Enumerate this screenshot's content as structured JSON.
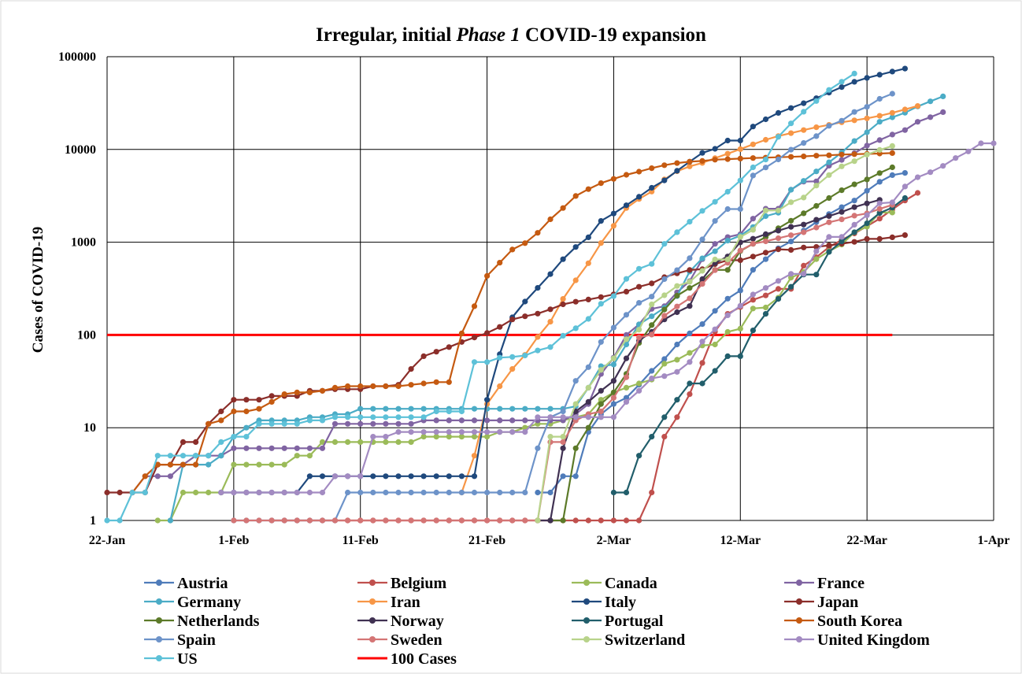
{
  "chart_data": {
    "type": "line",
    "title": {
      "before": "Irregular, initial ",
      "italic": "Phase 1",
      "after": " COVID-19 expansion"
    },
    "xlabel": "",
    "ylabel": "Cases of COVID-19",
    "y_scale": "log",
    "ylim": [
      1,
      100000
    ],
    "y_ticks": [
      {
        "value": 1,
        "label": "1"
      },
      {
        "value": 10,
        "label": "10"
      },
      {
        "value": 100,
        "label": "100"
      },
      {
        "value": 1000,
        "label": "1000"
      },
      {
        "value": 10000,
        "label": "10000"
      },
      {
        "value": 100000,
        "label": "100000"
      }
    ],
    "x_start_label": "22-Jan",
    "x_ticks": [
      {
        "date": "22-Jan",
        "label": "22-Jan"
      },
      {
        "date": "1-Feb",
        "label": "1-Feb"
      },
      {
        "date": "11-Feb",
        "label": "11-Feb"
      },
      {
        "date": "21-Feb",
        "label": "21-Feb"
      },
      {
        "date": "2-Mar",
        "label": "2-Mar"
      },
      {
        "date": "12-Mar",
        "label": "12-Mar"
      },
      {
        "date": "22-Mar",
        "label": "22-Mar"
      },
      {
        "date": "1-Apr",
        "label": "1-Apr"
      }
    ],
    "xlim": [
      "22-Jan",
      "1-Apr"
    ],
    "grid": true,
    "legend_position": "bottom",
    "series": [
      {
        "name": "Austria",
        "color": "#4f7cba",
        "start": "25-Feb",
        "values": [
          2,
          2,
          3,
          3,
          9,
          14,
          18,
          21,
          29,
          41,
          55,
          79,
          104,
          131,
          182,
          246,
          302,
          504,
          655,
          860,
          1018,
          1332,
          1646,
          2013,
          2388,
          2814,
          3582,
          4474,
          5283,
          5588
        ]
      },
      {
        "name": "Belgium",
        "color": "#c0504d",
        "start": "4-Feb",
        "values": [
          1,
          1,
          1,
          1,
          1,
          1,
          1,
          1,
          1,
          1,
          1,
          1,
          1,
          1,
          1,
          1,
          1,
          1,
          1,
          1,
          1,
          1,
          1,
          1,
          1,
          1,
          1,
          1,
          1,
          1,
          2,
          8,
          13,
          23,
          50,
          109,
          169,
          200,
          239,
          267,
          314,
          314,
          559,
          689,
          886,
          1058,
          1243,
          1486,
          1795,
          2257,
          2815,
          3401
        ]
      },
      {
        "name": "Canada",
        "color": "#9bbb59",
        "start": "26-Jan",
        "values": [
          1,
          1,
          2,
          2,
          2,
          2,
          4,
          4,
          4,
          4,
          4,
          5,
          5,
          7,
          7,
          7,
          7,
          7,
          7,
          7,
          7,
          8,
          8,
          8,
          8,
          8,
          8,
          9,
          9,
          10,
          11,
          11,
          12,
          13,
          14,
          20,
          24,
          27,
          30,
          33,
          49,
          54,
          64,
          77,
          79,
          108,
          117,
          193,
          198,
          252,
          415,
          478,
          657,
          800,
          943,
          1277,
          1469,
          2088,
          2088
        ]
      },
      {
        "name": "France",
        "color": "#8064a2",
        "start": "24-Jan",
        "values": [
          2,
          3,
          3,
          3,
          4,
          5,
          5,
          5,
          6,
          6,
          6,
          6,
          6,
          6,
          6,
          6,
          11,
          11,
          11,
          11,
          11,
          11,
          11,
          12,
          12,
          12,
          12,
          12,
          12,
          12,
          12,
          12,
          12,
          12,
          12,
          14,
          18,
          38,
          57,
          100,
          130,
          191,
          204,
          288,
          380,
          656,
          959,
          1136,
          1219,
          1794,
          2293,
          2293,
          3681,
          4496,
          4532,
          6683,
          7715,
          9124,
          10995,
          12612,
          14459,
          16176,
          19856,
          22304,
          25233
        ]
      },
      {
        "name": "Germany",
        "color": "#4bacc6",
        "start": "27-Jan",
        "values": [
          1,
          4,
          4,
          4,
          5,
          8,
          10,
          12,
          12,
          12,
          12,
          13,
          13,
          14,
          14,
          16,
          16,
          16,
          16,
          16,
          16,
          16,
          16,
          16,
          16,
          16,
          16,
          16,
          16,
          16,
          16,
          16,
          17,
          27,
          46,
          48,
          79,
          130,
          159,
          196,
          262,
          482,
          670,
          799,
          1040,
          1176,
          1457,
          1908,
          2078,
          3675,
          4585,
          5795,
          7272,
          9257,
          12327,
          15320,
          19848,
          22213,
          24873,
          29056,
          32986,
          37323
        ]
      },
      {
        "name": "Iran",
        "color": "#f79646",
        "start": "19-Feb",
        "values": [
          2,
          5,
          18,
          28,
          43,
          61,
          95,
          139,
          245,
          388,
          593,
          978,
          1501,
          2336,
          2922,
          3513,
          4747,
          5823,
          6566,
          7161,
          8042,
          9000,
          10075,
          11364,
          12729,
          13938,
          14991,
          16169,
          17361,
          18407,
          19644,
          20610,
          21638,
          23049,
          24811,
          27017,
          29406
        ]
      },
      {
        "name": "Italy",
        "color": "#1f497d",
        "start": "31-Jan",
        "values": [
          2,
          2,
          2,
          2,
          2,
          2,
          2,
          3,
          3,
          3,
          3,
          3,
          3,
          3,
          3,
          3,
          3,
          3,
          3,
          3,
          3,
          20,
          62,
          155,
          229,
          322,
          453,
          655,
          888,
          1128,
          1694,
          2036,
          2502,
          3089,
          3858,
          4636,
          5883,
          7375,
          9172,
          10149,
          12462,
          12462,
          17660,
          21157,
          24747,
          27980,
          31506,
          35713,
          41035,
          47021,
          53578,
          59138,
          63927,
          69176,
          74386
        ]
      },
      {
        "name": "Japan",
        "color": "#8b2e2a",
        "start": "22-Jan",
        "values": [
          2,
          2,
          2,
          2,
          4,
          4,
          7,
          7,
          11,
          15,
          20,
          20,
          20,
          22,
          22,
          22,
          25,
          25,
          26,
          26,
          26,
          28,
          28,
          29,
          43,
          59,
          66,
          74,
          84,
          94,
          105,
          122,
          147,
          159,
          170,
          189,
          214,
          228,
          241,
          256,
          274,
          293,
          331,
          360,
          420,
          461,
          502,
          511,
          581,
          639,
          639,
          701,
          773,
          839,
          825,
          878,
          889,
          924,
          963,
          1007,
          1086,
          1086,
          1128,
          1193
        ]
      },
      {
        "name": "Netherlands",
        "color": "#5c7a29",
        "start": "26-Feb",
        "values": [
          1,
          1,
          6,
          10,
          18,
          24,
          38,
          82,
          128,
          188,
          265,
          321,
          382,
          503,
          503,
          804,
          959,
          1135,
          1413,
          1705,
          2051,
          2460,
          2994,
          3631,
          4204,
          4749,
          5560,
          6412
        ]
      },
      {
        "name": "Norway",
        "color": "#403152",
        "start": "25-Feb",
        "values": [
          1,
          1,
          6,
          15,
          19,
          25,
          32,
          56,
          87,
          108,
          147,
          176,
          205,
          400,
          598,
          702,
          996,
          1090,
          1221,
          1333,
          1463,
          1550,
          1746,
          1914,
          2118,
          2385,
          2621,
          2863
        ]
      },
      {
        "name": "Portugal",
        "color": "#215e6b",
        "start": "2-Mar",
        "values": [
          2,
          2,
          5,
          8,
          13,
          20,
          30,
          30,
          41,
          59,
          59,
          112,
          169,
          245,
          331,
          448,
          448,
          785,
          1020,
          1280,
          1600,
          2060,
          2362,
          2995
        ]
      },
      {
        "name": "South Korea",
        "color": "#c55a11",
        "start": "24-Jan",
        "values": [
          2,
          3,
          4,
          4,
          4,
          4,
          11,
          12,
          15,
          15,
          16,
          19,
          23,
          24,
          24,
          25,
          27,
          28,
          28,
          28,
          28,
          28,
          29,
          30,
          31,
          31,
          104,
          204,
          433,
          602,
          833,
          977,
          1261,
          1766,
          2337,
          3150,
          3736,
          4335,
          4812,
          5328,
          5766,
          6284,
          6767,
          7134,
          7382,
          7513,
          7755,
          7869,
          7979,
          8086,
          8162,
          8236,
          8320,
          8413,
          8565,
          8652,
          8799,
          8897,
          8961,
          9037,
          9137
        ]
      },
      {
        "name": "Spain",
        "color": "#6d93c9",
        "start": "1-Feb",
        "values": [
          1,
          1,
          1,
          1,
          1,
          1,
          1,
          1,
          1,
          2,
          2,
          2,
          2,
          2,
          2,
          2,
          2,
          2,
          2,
          2,
          2,
          2,
          2,
          2,
          6,
          13,
          15,
          32,
          45,
          84,
          120,
          165,
          222,
          259,
          400,
          500,
          673,
          1073,
          1695,
          2277,
          2277,
          5232,
          6391,
          7798,
          9942,
          11748,
          13910,
          17963,
          20410,
          25374,
          28768,
          35136,
          39885
        ]
      },
      {
        "name": "Sweden",
        "color": "#d47575",
        "start": "1-Feb",
        "values": [
          1,
          1,
          1,
          1,
          1,
          1,
          1,
          1,
          1,
          1,
          1,
          1,
          1,
          1,
          1,
          1,
          1,
          1,
          1,
          1,
          1,
          1,
          1,
          1,
          1,
          7,
          7,
          12,
          14,
          15,
          21,
          35,
          94,
          101,
          161,
          203,
          248,
          355,
          500,
          599,
          814,
          961,
          1022,
          1103,
          1190,
          1279,
          1439,
          1639,
          1763,
          1934,
          2046,
          2286,
          2526
        ]
      },
      {
        "name": "Switzerland",
        "color": "#b8d38a",
        "start": "25-Feb",
        "values": [
          1,
          8,
          8,
          18,
          27,
          42,
          56,
          90,
          114,
          214,
          268,
          337,
          374,
          491,
          652,
          652,
          1139,
          1359,
          2200,
          2200,
          2700,
          3028,
          4075,
          5294,
          6575,
          7474,
          8795,
          9877,
          10897
        ]
      },
      {
        "name": "United Kingdom",
        "color": "#a38bc2",
        "start": "31-Jan",
        "values": [
          2,
          2,
          2,
          2,
          2,
          2,
          2,
          2,
          2,
          3,
          3,
          3,
          8,
          8,
          9,
          9,
          9,
          9,
          9,
          9,
          9,
          9,
          9,
          9,
          9,
          13,
          13,
          13,
          13,
          13,
          13,
          13,
          19,
          25,
          34,
          36,
          40,
          51,
          85,
          115,
          163,
          206,
          273,
          321,
          382,
          456,
          456,
          798,
          1140,
          1140,
          1543,
          1950,
          2626,
          2689,
          3983,
          5018,
          5683,
          6650,
          8077,
          9529,
          11658,
          11658
        ]
      },
      {
        "name": "US",
        "color": "#5dc1d8",
        "start": "22-Jan",
        "values": [
          1,
          1,
          2,
          2,
          5,
          5,
          5,
          5,
          5,
          7,
          8,
          8,
          11,
          11,
          11,
          11,
          12,
          12,
          13,
          13,
          13,
          13,
          13,
          13,
          13,
          13,
          15,
          15,
          15,
          51,
          51,
          57,
          58,
          60,
          68,
          74,
          98,
          118,
          149,
          217,
          262,
          402,
          518,
          583,
          959,
          1281,
          1663,
          2179,
          2727,
          3499,
          4632,
          6421,
          7786,
          13680,
          19101,
          25493,
          33276,
          43847,
          53740,
          65778
        ]
      },
      {
        "name": "100 Cases",
        "color": "#ff0000",
        "type": "reference",
        "start": "22-Jan",
        "end": "24-Mar",
        "value": 100
      }
    ]
  }
}
